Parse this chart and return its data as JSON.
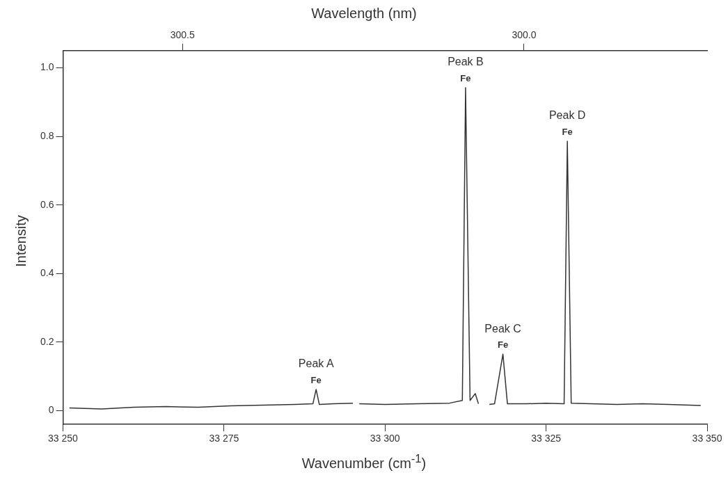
{
  "chart_data": {
    "type": "line",
    "xlabel": "Wavenumber (cm$^{-1}$)",
    "ylabel": "Intensity",
    "x2label": "Wavelength (nm)",
    "xlim": [
      33250,
      33350
    ],
    "xticks": [
      {
        "value": 33250,
        "label": "33 250"
      },
      {
        "value": 33275,
        "label": "33 275"
      },
      {
        "value": 33300,
        "label": "33 300"
      },
      {
        "value": 33325,
        "label": "33 325"
      },
      {
        "value": 33350,
        "label": "33 350"
      }
    ],
    "x2lim": [
      300.675,
      299.732
    ],
    "x2ticks": [
      {
        "value": 300.5,
        "label": "300.5"
      },
      {
        "value": 300.0,
        "label": "300.0"
      }
    ],
    "ylim": [
      -0.04,
      1.05
    ],
    "yticks": [
      0,
      {
        "value": 0.2,
        "label": "0.2"
      },
      {
        "value": 0.4,
        "label": "0.4"
      },
      {
        "value": 0.6,
        "label": "0.6"
      },
      {
        "value": 0.8,
        "label": "0.8"
      },
      {
        "value": 1.0,
        "label": "1.0"
      }
    ],
    "grid": false,
    "legend": false,
    "marker": "none",
    "line_style": "solid",
    "series": [
      {
        "color": "#333333",
        "x": [
          33251,
          33256,
          33261,
          33266,
          33271,
          33276,
          33281,
          33286,
          33288.8,
          33289.3,
          33289.8,
          33292,
          33295,
          33295.3,
          33296,
          33300,
          33305,
          33310,
          33312,
          33312.5,
          33313.2,
          33314,
          33314.5,
          33315,
          33316.2,
          33317,
          33318.3,
          33319,
          33322,
          33325,
          33327.8,
          33328.3,
          33328.9,
          33332,
          33336,
          33340,
          33344,
          33349
        ],
        "values": [
          0.008,
          0.005,
          0.01,
          0.012,
          0.01,
          0.014,
          0.016,
          0.018,
          0.02,
          0.062,
          0.018,
          0.02,
          0.022,
          null,
          0.02,
          0.018,
          0.02,
          0.022,
          0.03,
          0.942,
          0.03,
          0.05,
          0.02,
          null,
          0.018,
          0.02,
          0.165,
          0.02,
          0.02,
          0.022,
          0.02,
          0.786,
          0.022,
          0.02,
          0.018,
          0.02,
          0.018,
          0.015
        ]
      }
    ],
    "annotations": [
      {
        "text": "Peak A\nFe",
        "x": 33289.3,
        "y": 0.062
      },
      {
        "text": "Peak B\nFe",
        "x": 33312.5,
        "y": 0.942
      },
      {
        "text": "Peak C\nFe",
        "x": 33318.3,
        "y": 0.165
      },
      {
        "text": "Peak D\nFe",
        "x": 33328.3,
        "y": 0.786
      }
    ]
  }
}
